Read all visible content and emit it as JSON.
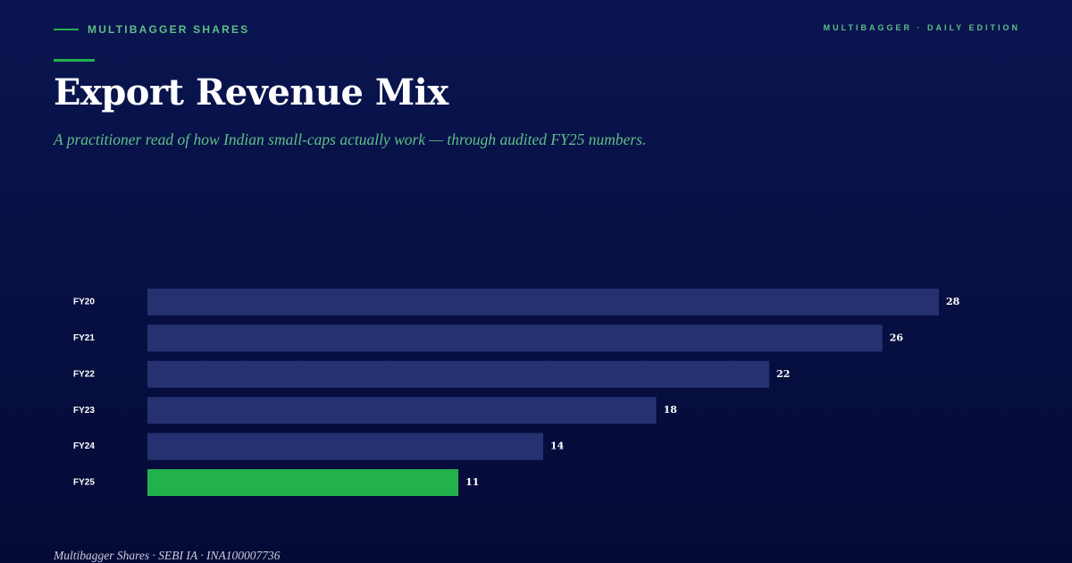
{
  "header": {
    "brand": "MULTIBAGGER SHARES",
    "edition": "MULTIBAGGER · DAILY EDITION"
  },
  "title": "Export Revenue Mix",
  "subtitle": "A practitioner read of how Indian small-caps actually work — through audited FY25 numbers.",
  "footer": "Multibagger Shares · SEBI IA · INA100007736",
  "colors": {
    "background": "#07104a",
    "accent": "#22b14c",
    "accent_text": "#5fbf86",
    "bar": "#263172",
    "highlight_bar": "#22b14c"
  },
  "chart_data": {
    "type": "bar",
    "orientation": "horizontal",
    "categories": [
      "FY20",
      "FY21",
      "FY22",
      "FY23",
      "FY24",
      "FY25"
    ],
    "values": [
      28,
      26,
      22,
      18,
      14,
      11
    ],
    "highlight": "FY25",
    "xlim": [
      0,
      28
    ],
    "grid": false,
    "legend": "none"
  }
}
